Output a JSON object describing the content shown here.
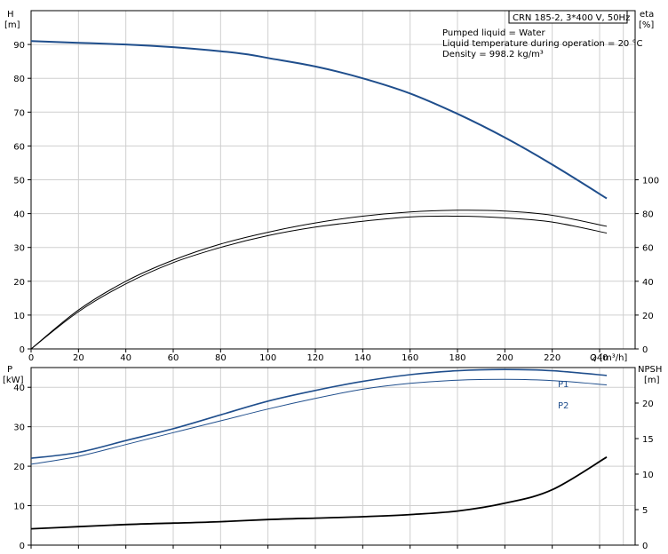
{
  "chart_data": [
    {
      "type": "line",
      "title": "CRN 185-2, 3*400 V, 50Hz",
      "info": [
        "Pumped liquid = Water",
        "Liquid temperature during operation = 20 °C",
        "Density = 998.2 kg/m³"
      ],
      "xlabel": "Q [m³/h]",
      "ylabel": [
        "H",
        "[m]"
      ],
      "ylabel_right": [
        "eta",
        "[%]"
      ],
      "xlim": [
        0,
        255
      ],
      "ylim": [
        0,
        100
      ],
      "ylim_right": [
        0,
        200
      ],
      "xticks": [
        0,
        20,
        40,
        60,
        80,
        100,
        120,
        140,
        160,
        180,
        200,
        220,
        240
      ],
      "yticks": [
        0,
        10,
        20,
        30,
        40,
        50,
        60,
        70,
        80,
        90
      ],
      "yticks_right": [
        0,
        20,
        40,
        60,
        80,
        100
      ],
      "grid": true,
      "series": [
        {
          "role": "H",
          "axis": "left",
          "color": "#1f4e8c",
          "x": [
            0,
            20,
            40,
            60,
            80,
            92,
            100,
            120,
            140,
            160,
            180,
            200,
            220,
            243
          ],
          "y": [
            91,
            90.5,
            90,
            89.2,
            88,
            87,
            86,
            83.5,
            80,
            75.5,
            69.5,
            62.5,
            54.5,
            44.5
          ]
        },
        {
          "role": "eta-1",
          "axis": "right",
          "color": "#000000",
          "x": [
            0,
            20,
            40,
            60,
            80,
            100,
            120,
            140,
            160,
            180,
            200,
            220,
            243
          ],
          "y": [
            0,
            22,
            38.5,
            51,
            60,
            67,
            72,
            75.5,
            78,
            78.5,
            77.5,
            75,
            68.5
          ]
        },
        {
          "role": "eta-2",
          "axis": "right",
          "color": "#000000",
          "x": [
            0,
            20,
            40,
            60,
            80,
            100,
            120,
            140,
            160,
            180,
            200,
            220,
            243
          ],
          "y": [
            0,
            23,
            40,
            52.5,
            62,
            69,
            74.5,
            78.5,
            81,
            82,
            81.5,
            79,
            72.5
          ]
        }
      ]
    },
    {
      "type": "line",
      "xlim": [
        0,
        255
      ],
      "ylim": [
        0,
        45
      ],
      "ylim_right": [
        0,
        25
      ],
      "ylabel": [
        "P",
        "[kW]"
      ],
      "ylabel_right": [
        "NPSH",
        "[m]"
      ],
      "yticks": [
        0,
        10,
        20,
        30,
        40
      ],
      "yticks_right": [
        0,
        5,
        10,
        15,
        20
      ],
      "grid": true,
      "series": [
        {
          "name": "P1",
          "axis": "left",
          "color": "#1f4e8c",
          "x": [
            0,
            20,
            40,
            60,
            80,
            100,
            120,
            140,
            160,
            180,
            200,
            220,
            243
          ],
          "y": [
            22,
            23.5,
            26.5,
            29.5,
            33,
            36.5,
            39.2,
            41.5,
            43.2,
            44.2,
            44.5,
            44.2,
            43
          ]
        },
        {
          "name": "P2",
          "axis": "left",
          "color": "#1f4e8c",
          "x": [
            0,
            20,
            40,
            60,
            80,
            100,
            120,
            140,
            160,
            180,
            200,
            220,
            243
          ],
          "y": [
            20.5,
            22.5,
            25.5,
            28.5,
            31.5,
            34.5,
            37.2,
            39.5,
            41,
            41.8,
            42,
            41.7,
            40.6
          ]
        },
        {
          "role": "NPSH",
          "axis": "right",
          "color": "#000000",
          "x": [
            0,
            20,
            40,
            60,
            80,
            100,
            120,
            140,
            160,
            180,
            200,
            220,
            243
          ],
          "y": [
            2.3,
            2.6,
            2.9,
            3.1,
            3.3,
            3.6,
            3.8,
            4.0,
            4.3,
            4.8,
            5.9,
            7.8,
            12.4
          ]
        }
      ]
    }
  ]
}
